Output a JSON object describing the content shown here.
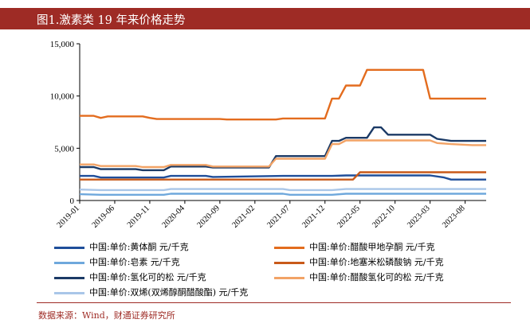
{
  "title": "图1.激素类 19 年来价格走势",
  "source": "数据来源：Wind，财通证券研究所",
  "chart_data": {
    "type": "line",
    "title": "图1.激素类 19 年来价格走势",
    "xlabel": "",
    "ylabel": "",
    "ylim": [
      0,
      15000
    ],
    "y_ticks": [
      "0",
      "5,000",
      "10,000",
      "15,000"
    ],
    "y_tick_values": [
      0,
      5000,
      10000,
      15000
    ],
    "x_range": [
      "2019-01",
      "2023-11"
    ],
    "x_ticks": [
      "2019-01",
      "2019-06",
      "2019-11",
      "2020-04",
      "2020-09",
      "2021-02",
      "2021-07",
      "2021-12",
      "2022-05",
      "2022-10",
      "2023-03",
      "2023-08"
    ],
    "grid": false,
    "legend_position": "bottom",
    "series": [
      {
        "name": "中国:单价:黄体酮 元/千克",
        "color": "#1f4e9a",
        "points": [
          [
            "2019-01",
            2350
          ],
          [
            "2019-03",
            2350
          ],
          [
            "2019-04",
            2200
          ],
          [
            "2019-08",
            2200
          ],
          [
            "2020-01",
            2200
          ],
          [
            "2020-02",
            2350
          ],
          [
            "2020-07",
            2350
          ],
          [
            "2020-08",
            2250
          ],
          [
            "2021-06",
            2350
          ],
          [
            "2022-01",
            2350
          ],
          [
            "2022-03",
            2400
          ],
          [
            "2023-03",
            2400
          ],
          [
            "2023-05",
            2200
          ],
          [
            "2023-06",
            2000
          ],
          [
            "2023-11",
            2000
          ]
        ]
      },
      {
        "name": "中国:单价:醋酸甲地孕酮 元/千克",
        "color": "#e36c1e",
        "points": [
          [
            "2019-01",
            8100
          ],
          [
            "2019-03",
            8100
          ],
          [
            "2019-04",
            7900
          ],
          [
            "2019-05",
            8050
          ],
          [
            "2019-10",
            8050
          ],
          [
            "2019-11",
            7900
          ],
          [
            "2019-12",
            7800
          ],
          [
            "2020-09",
            7800
          ],
          [
            "2020-10",
            7750
          ],
          [
            "2021-05",
            7750
          ],
          [
            "2021-06",
            7850
          ],
          [
            "2021-12",
            7850
          ],
          [
            "2022-01",
            9750
          ],
          [
            "2022-02",
            9750
          ],
          [
            "2022-03",
            11000
          ],
          [
            "2022-05",
            11000
          ],
          [
            "2022-06",
            12500
          ],
          [
            "2023-02",
            12500
          ],
          [
            "2023-03",
            9750
          ],
          [
            "2023-11",
            9750
          ]
        ]
      },
      {
        "name": "中国:单价:皂素 元/千克",
        "color": "#6fa8dc",
        "points": [
          [
            "2019-01",
            600
          ],
          [
            "2019-04",
            550
          ],
          [
            "2020-01",
            550
          ],
          [
            "2020-02",
            650
          ],
          [
            "2021-06",
            650
          ],
          [
            "2021-07",
            550
          ],
          [
            "2022-01",
            550
          ],
          [
            "2022-03",
            650
          ],
          [
            "2023-11",
            650
          ]
        ]
      },
      {
        "name": "中国:单价:地塞米松磷酸钠 元/千克",
        "color": "#c85a1a",
        "points": [
          [
            "2019-01",
            2000
          ],
          [
            "2022-04",
            2000
          ],
          [
            "2022-05",
            2700
          ],
          [
            "2023-11",
            2700
          ]
        ]
      },
      {
        "name": "中国:单价:氢化可的松 元/千克",
        "color": "#1b3a66",
        "points": [
          [
            "2019-01",
            3200
          ],
          [
            "2019-03",
            3200
          ],
          [
            "2019-04",
            3000
          ],
          [
            "2019-09",
            3000
          ],
          [
            "2019-10",
            2900
          ],
          [
            "2020-01",
            2900
          ],
          [
            "2020-02",
            3250
          ],
          [
            "2020-07",
            3250
          ],
          [
            "2020-08",
            3150
          ],
          [
            "2021-04",
            3150
          ],
          [
            "2021-05",
            4250
          ],
          [
            "2021-12",
            4250
          ],
          [
            "2022-01",
            5700
          ],
          [
            "2022-02",
            5700
          ],
          [
            "2022-03",
            6000
          ],
          [
            "2022-06",
            6000
          ],
          [
            "2022-07",
            7000
          ],
          [
            "2022-08",
            7000
          ],
          [
            "2022-09",
            6300
          ],
          [
            "2023-03",
            6300
          ],
          [
            "2023-04",
            5900
          ],
          [
            "2023-06",
            5700
          ],
          [
            "2023-11",
            5700
          ]
        ]
      },
      {
        "name": "中国:单价:醋酸氢化可的松 元/千克",
        "color": "#f2a366",
        "points": [
          [
            "2019-01",
            3450
          ],
          [
            "2019-03",
            3450
          ],
          [
            "2019-04",
            3300
          ],
          [
            "2019-09",
            3300
          ],
          [
            "2019-10",
            3200
          ],
          [
            "2020-01",
            3200
          ],
          [
            "2020-02",
            3400
          ],
          [
            "2020-07",
            3400
          ],
          [
            "2020-08",
            3250
          ],
          [
            "2021-04",
            3250
          ],
          [
            "2021-05",
            4000
          ],
          [
            "2021-12",
            4000
          ],
          [
            "2022-01",
            5400
          ],
          [
            "2022-02",
            5400
          ],
          [
            "2022-03",
            5750
          ],
          [
            "2023-03",
            5750
          ],
          [
            "2023-04",
            5500
          ],
          [
            "2023-06",
            5400
          ],
          [
            "2023-09",
            5300
          ],
          [
            "2023-11",
            5300
          ]
        ]
      },
      {
        "name": "中国:单价:双烯(双烯醇酮醋酸酯) 元/千克",
        "color": "#a9c6e8",
        "points": [
          [
            "2019-01",
            1050
          ],
          [
            "2019-04",
            1000
          ],
          [
            "2020-01",
            1000
          ],
          [
            "2020-02",
            1100
          ],
          [
            "2021-06",
            1100
          ],
          [
            "2021-07",
            1000
          ],
          [
            "2022-01",
            1000
          ],
          [
            "2022-03",
            1100
          ],
          [
            "2023-11",
            1100
          ]
        ]
      }
    ]
  }
}
